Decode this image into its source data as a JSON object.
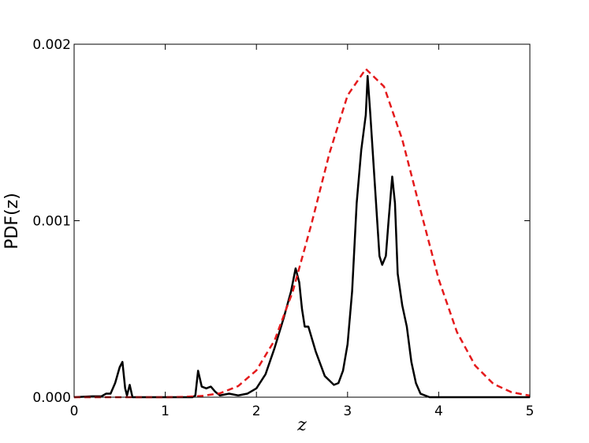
{
  "chart_data": {
    "type": "line",
    "xlabel": "z",
    "ylabel": "PDF(z)",
    "xlim": [
      0,
      5
    ],
    "ylim": [
      0,
      0.002
    ],
    "xticks": [
      0,
      1,
      2,
      3,
      4,
      5
    ],
    "yticks": [
      {
        "value": 0,
        "label": "0.000"
      },
      0.001,
      0.002
    ],
    "series": [
      {
        "color": "#000000",
        "dash": false,
        "x": [
          0,
          0.2,
          0.3,
          0.35,
          0.4,
          0.45,
          0.5,
          0.53,
          0.56,
          0.58,
          0.61,
          0.64,
          0.7,
          1.3,
          1.33,
          1.36,
          1.4,
          1.45,
          1.5,
          1.55,
          1.6,
          1.7,
          1.8,
          1.9,
          2.0,
          2.1,
          2.2,
          2.3,
          2.38,
          2.43,
          2.47,
          2.5,
          2.53,
          2.57,
          2.65,
          2.75,
          2.85,
          2.9,
          2.95,
          3.0,
          3.05,
          3.1,
          3.15,
          3.2,
          3.22,
          3.25,
          3.3,
          3.35,
          3.38,
          3.42,
          3.45,
          3.49,
          3.52,
          3.55,
          3.6,
          3.65,
          3.7,
          3.75,
          3.8,
          3.9,
          5.0
        ],
        "values": [
          0,
          5e-06,
          5e-06,
          2e-05,
          2e-05,
          8e-05,
          0.00017,
          0.0002,
          5e-05,
          1e-05,
          7e-05,
          0,
          0,
          0,
          1e-05,
          0.00015,
          6e-05,
          5e-05,
          6e-05,
          3e-05,
          1e-05,
          2e-05,
          1e-05,
          2e-05,
          5e-05,
          0.00013,
          0.00028,
          0.00045,
          0.0006,
          0.00073,
          0.00065,
          0.0005,
          0.0004,
          0.0004,
          0.00026,
          0.00012,
          7e-05,
          8e-05,
          0.00015,
          0.0003,
          0.0006,
          0.0011,
          0.0014,
          0.0016,
          0.00182,
          0.0016,
          0.0012,
          0.0008,
          0.00075,
          0.0008,
          0.001,
          0.00125,
          0.0011,
          0.0007,
          0.00052,
          0.0004,
          0.0002,
          8e-05,
          2e-05,
          0,
          0
        ]
      },
      {
        "color": "#e41a1c",
        "dash": true,
        "x": [
          0,
          1.0,
          1.2,
          1.4,
          1.6,
          1.8,
          2.0,
          2.2,
          2.4,
          2.6,
          2.8,
          3.0,
          3.2,
          3.4,
          3.6,
          3.8,
          4.0,
          4.2,
          4.4,
          4.6,
          4.8,
          5.0
        ],
        "values": [
          0,
          0,
          1.9e-06,
          7e-06,
          2.2e-05,
          6.3e-05,
          0.000152,
          0.000323,
          0.000601,
          0.000974,
          0.00138,
          0.00171,
          0.00186,
          0.00176,
          0.00146,
          0.00106,
          0.000668,
          0.000369,
          0.000179,
          7.54e-05,
          2.79e-05,
          9e-06
        ]
      }
    ]
  }
}
